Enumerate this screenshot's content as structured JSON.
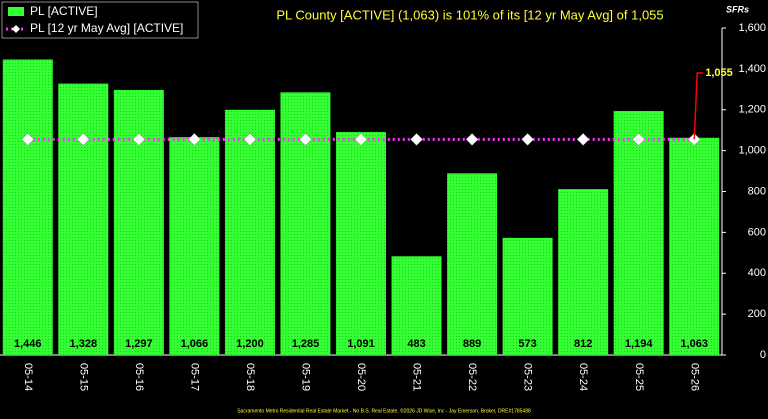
{
  "chart_data": {
    "type": "bar",
    "title": "PL County [ACTIVE] (1,063) is 101% of its [12 yr May Avg] of 1,055",
    "y_label": "SFRs",
    "footer": "Sacramento Metro Residential Real Estate Market - No B.S. Real Estate, ©2026 JD Wise, Inc - Jay Emerson, Broker, DRE#1785488",
    "categories": [
      "05-14",
      "05-15",
      "05-16",
      "05-17",
      "05-18",
      "05-19",
      "05-20",
      "05-21",
      "05-22",
      "05-23",
      "05-24",
      "05-25",
      "05-26"
    ],
    "series": [
      {
        "name": "PL [ACTIVE]",
        "color": "#33ff33",
        "values": [
          1446,
          1328,
          1297,
          1066,
          1200,
          1285,
          1091,
          483,
          889,
          573,
          812,
          1194,
          1063
        ],
        "value_labels": [
          "1,446",
          "1,328",
          "1,297",
          "1,066",
          "1,200",
          "1,285",
          "1,091",
          "483",
          "889",
          "573",
          "812",
          "1,194",
          "1,063"
        ]
      },
      {
        "name": "PL [12 yr May Avg] [ACTIVE]",
        "color": "#ff33ff",
        "type": "line",
        "values": [
          1055,
          1055,
          1055,
          1055,
          1055,
          1055,
          1055,
          1055,
          1055,
          1055,
          1055,
          1055,
          1055
        ]
      }
    ],
    "annotation": {
      "value": 1055,
      "label": "1,055"
    },
    "ylim": [
      0,
      1600
    ],
    "yticks": [
      0,
      200,
      400,
      600,
      800,
      {
        "value": 1000,
        "label": "1,000"
      },
      {
        "value": 1200,
        "label": "1,200"
      },
      {
        "value": 1400,
        "label": "1,400"
      },
      {
        "value": 1600,
        "label": "1,600"
      }
    ],
    "grid": false
  }
}
